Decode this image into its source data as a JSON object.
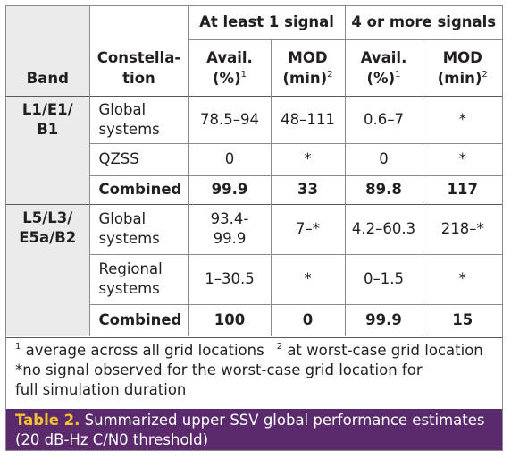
{
  "header": {
    "group1": "At least 1 signal",
    "group2": "4 or more signals",
    "band": "Band",
    "constellation_line1": "Constella-",
    "constellation_line2": "tion",
    "avail_line1": "Avail.",
    "avail_line2": "(%)",
    "avail_sup": "1",
    "mod_line1": "MOD",
    "mod_line2": "(min)",
    "mod_sup": "2"
  },
  "bands": [
    {
      "band_lines": [
        "L1/E1/",
        "B1"
      ],
      "rows": [
        {
          "constellation": [
            "Global",
            "systems"
          ],
          "values": [
            "78.5–94",
            "48–111",
            "0.6–7",
            "*"
          ]
        },
        {
          "constellation": [
            "QZSS"
          ],
          "values": [
            "0",
            "*",
            "0",
            "*"
          ]
        },
        {
          "constellation": [
            "Combined"
          ],
          "values": [
            "99.9",
            "33",
            "89.8",
            "117"
          ]
        }
      ]
    },
    {
      "band_lines": [
        "L5/L3/",
        "E5a/B2"
      ],
      "rows": [
        {
          "constellation": [
            "Global",
            "systems"
          ],
          "values": [
            "93.4-\n99.9",
            "7–*",
            "4.2–60.3",
            "218–*"
          ]
        },
        {
          "constellation": [
            "Regional",
            "systems"
          ],
          "values": [
            "1–30.5",
            "*",
            "0–1.5",
            "*"
          ]
        },
        {
          "constellation": [
            "Combined"
          ],
          "values": [
            "100",
            "0",
            "99.9",
            "15"
          ]
        }
      ]
    }
  ],
  "notes": {
    "sup1": "1",
    "note1": " average across all grid locations",
    "sup2": "2",
    "note2": " at worst-case grid location",
    "note3": "*no signal observed for the worst-case grid location for",
    "note4": "full simulation duration"
  },
  "caption": {
    "label": "Table 2.",
    "text": " Summarized upper SSV global performance estimates (20 dB-Hz C/N0 threshold)"
  },
  "colors": {
    "caption_bg": "#5b2a6c",
    "caption_label": "#f2c230",
    "band_bg": "#ebebeb"
  }
}
